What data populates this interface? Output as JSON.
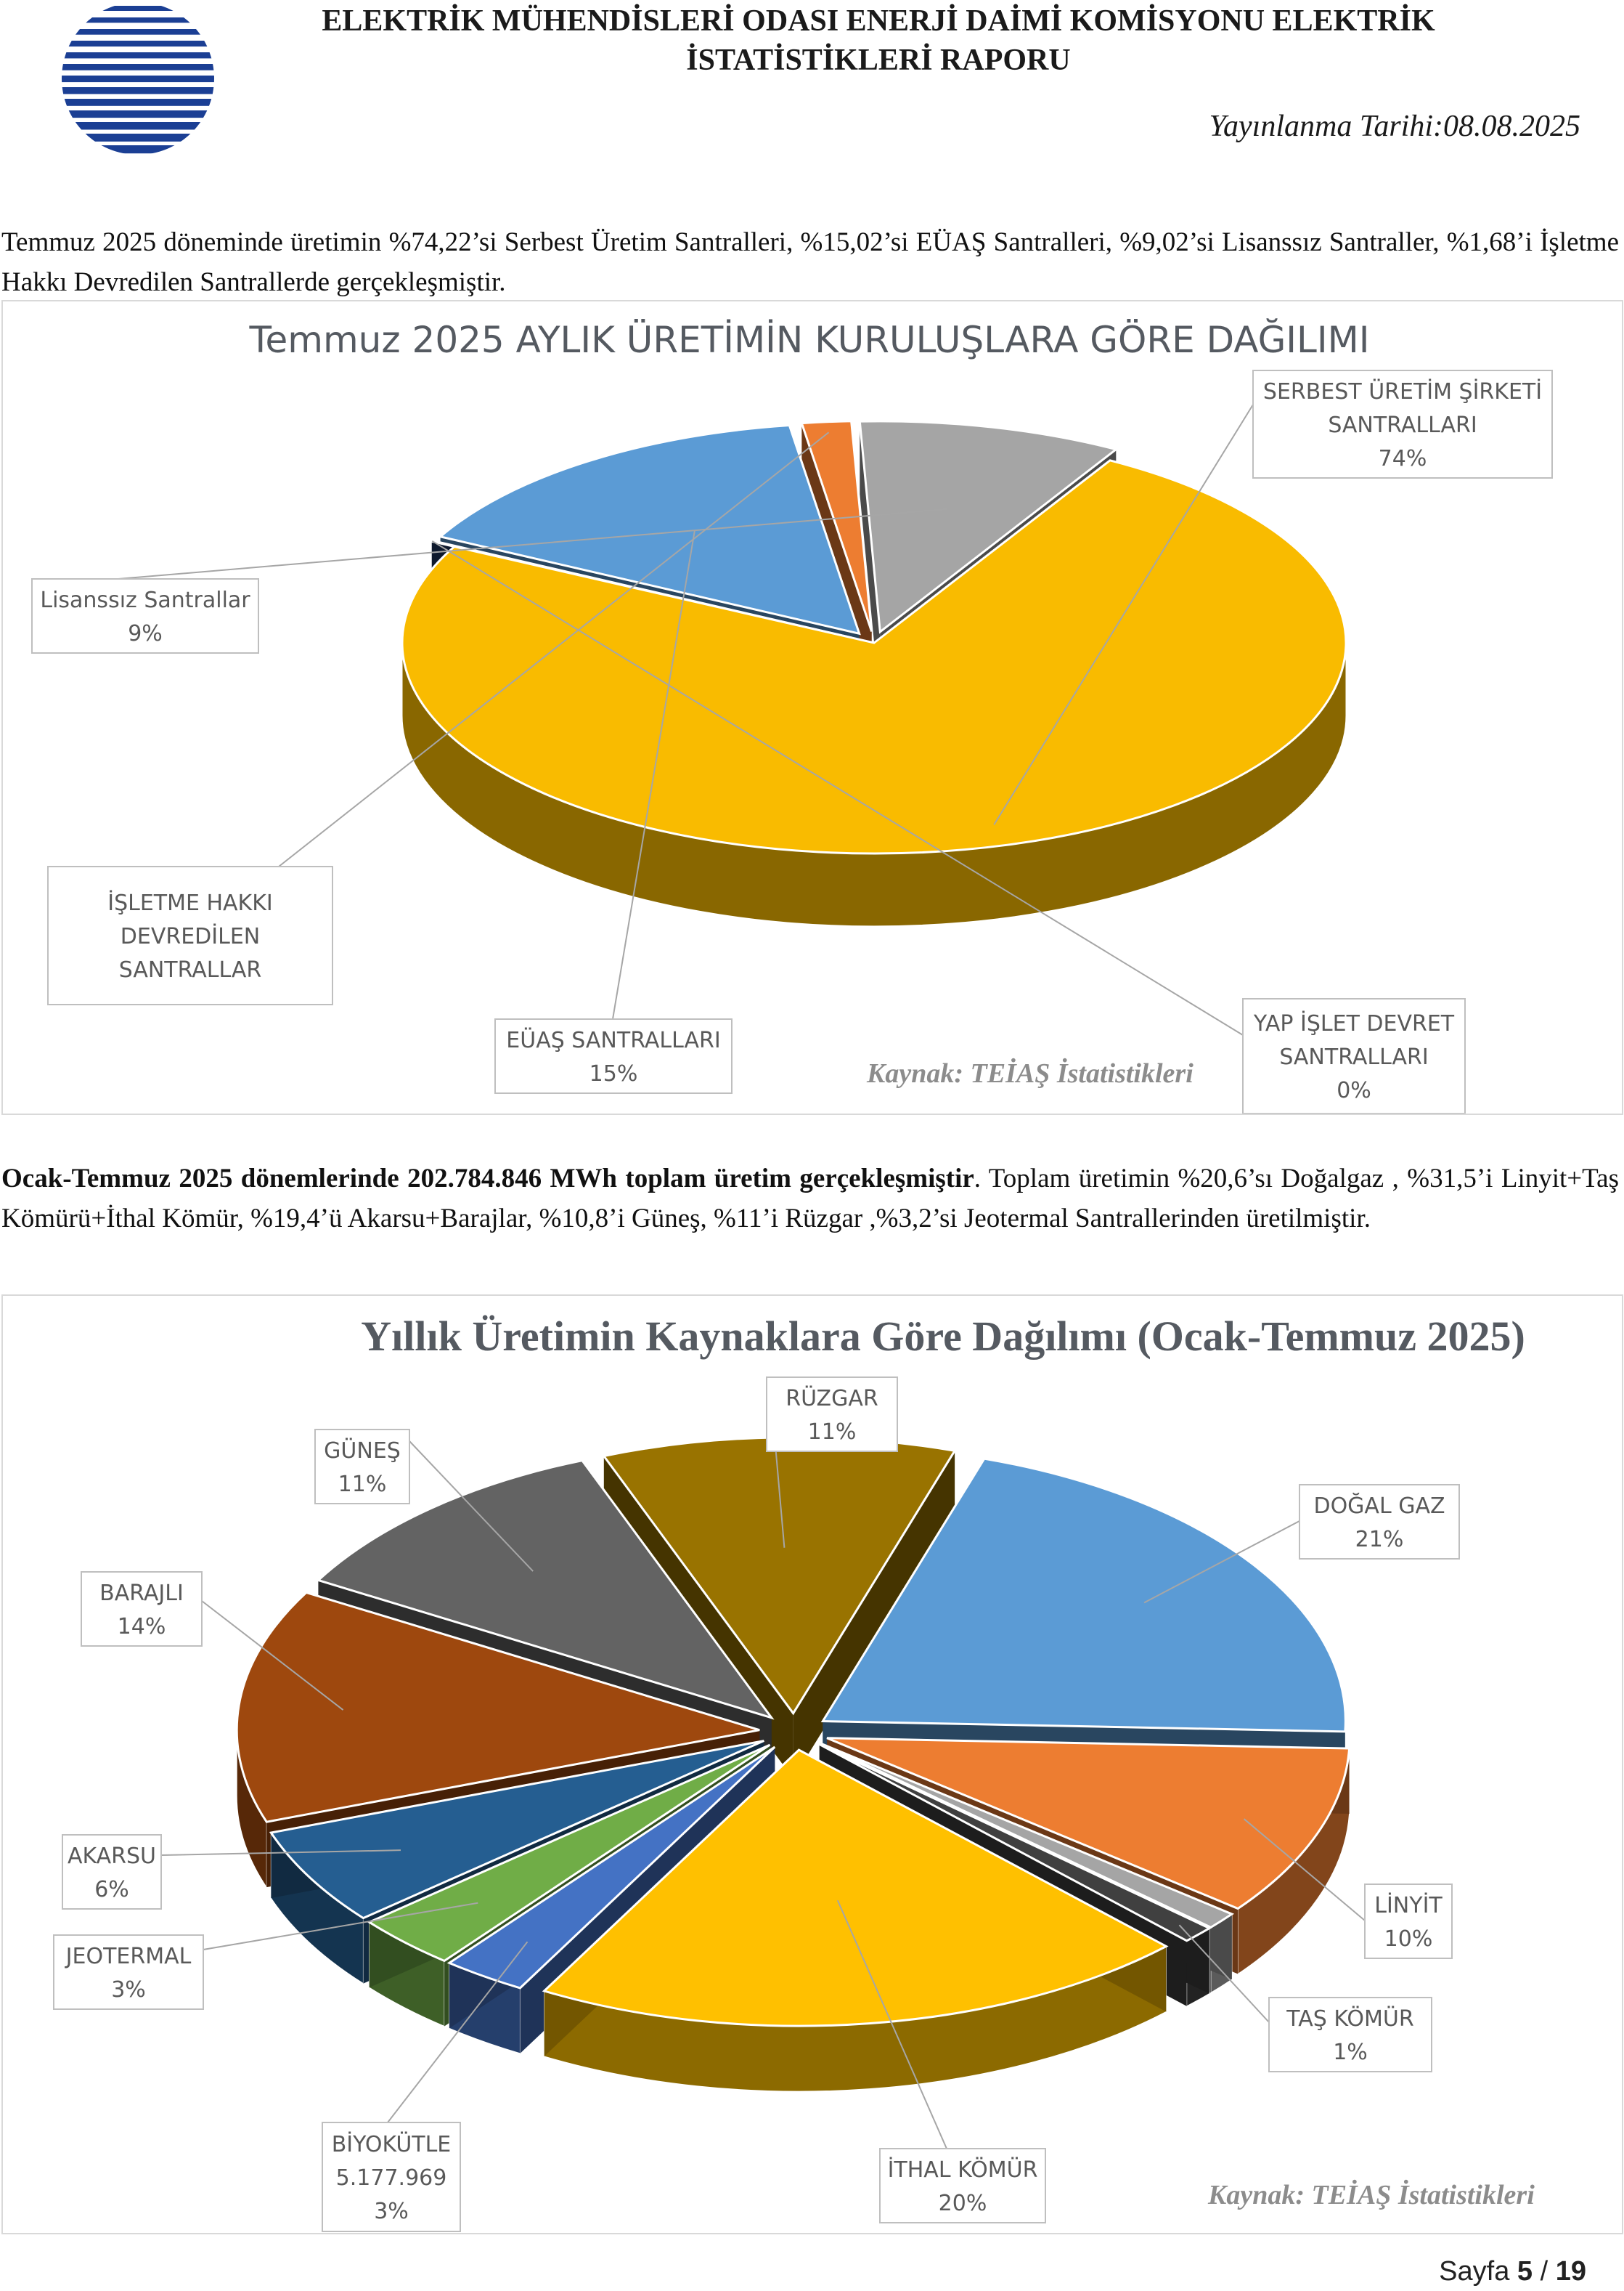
{
  "header": {
    "title_line1": "ELEKTRİK MÜHENDİSLERİ ODASI ENERJİ DAİMİ KOMİSYONU ELEKTRİK",
    "title_line2": "İSTATİSTİKLERİ RAPORU",
    "publication_date": "Yayınlanma Tarihi:08.08.2025"
  },
  "paragraph1": "Temmuz 2025 döneminde üretimin %74,22’si Serbest Üretim Santralleri, %15,02’si EÜAŞ Santralleri, %9,02’si Lisanssız Santraller, %1,68’i İşletme Hakkı Devredilen Santrallerde gerçekleşmiştir.",
  "paragraph2": {
    "bold_part": "Ocak-Temmuz 2025 dönemlerinde 202.784.846 MWh toplam üretim gerçekleşmiştir",
    "rest": ". Toplam üretimin %20,6’sı Doğalgaz , %31,5’i Linyit+Taş Kömürü+İthal Kömür, %19,4’ü Akarsu+Barajlar, %10,8’i Güneş, %11’i Rüzgar ,%3,2’si Jeotermal Santrallerinden üretilmiştir."
  },
  "chart_data": [
    {
      "type": "pie",
      "title": "Temmuz 2025 AYLIK ÜRETİMİN KURULUŞLARA GÖRE DAĞILIMI",
      "source": "Kaynak: TEİAŞ İstatistikleri",
      "slices": [
        {
          "label": [
            "SERBEST ÜRETİM ŞİRKETİ",
            "SANTRALLARI"
          ],
          "display": "74%",
          "value": 74.22,
          "color": "#f9bb00"
        },
        {
          "label": [
            "YAP İŞLET DEVRET",
            "SANTRALLARI"
          ],
          "display": "0%",
          "value": 0.06,
          "color": "#1f3864"
        },
        {
          "label": [
            "EÜAŞ SANTRALLARI"
          ],
          "display": "15%",
          "value": 15.02,
          "color": "#5b9bd5"
        },
        {
          "label": [
            "İŞLETME HAKKI",
            "DEVREDİLEN",
            "SANTRALLAR"
          ],
          "display": "",
          "value": 1.68,
          "color": "#ed7d31"
        },
        {
          "label": [
            "Lisanssız Santrallar"
          ],
          "display": "9%",
          "value": 9.02,
          "color": "#a5a5a5"
        }
      ]
    },
    {
      "type": "pie",
      "title": "Yıllık Üretimin Kaynaklara Göre Dağılımı (Ocak-Temmuz 2025)",
      "source": "Kaynak: TEİAŞ İstatistikleri",
      "slices": [
        {
          "label": [
            "DOĞAL GAZ"
          ],
          "display": "21%",
          "value": 20.6,
          "color": "#5b9bd5"
        },
        {
          "label": [
            "LİNYİT"
          ],
          "display": "10%",
          "value": 10.0,
          "color": "#ed7d31"
        },
        {
          "label": [],
          "display": "",
          "value": 1.0,
          "color": "#a5a5a5"
        },
        {
          "label": [
            "TAŞ KÖMÜR"
          ],
          "display": "1%",
          "value": 1.0,
          "color": "#404040"
        },
        {
          "label": [
            "İTHAL KÖMÜR"
          ],
          "display": "20%",
          "value": 20.5,
          "color": "#ffc000"
        },
        {
          "label": [
            "BİYOKÜTLE",
            "5.177.969"
          ],
          "display": "3%",
          "value": 2.6,
          "color": "#4472c4"
        },
        {
          "label": [
            "JEOTERMAL"
          ],
          "display": "3%",
          "value": 3.2,
          "color": "#70ad47"
        },
        {
          "label": [
            "AKARSU"
          ],
          "display": "6%",
          "value": 5.7,
          "color": "#255e91"
        },
        {
          "label": [
            "BARAJLI"
          ],
          "display": "14%",
          "value": 13.7,
          "color": "#9e480e"
        },
        {
          "label": [
            "GÜNEŞ"
          ],
          "display": "11%",
          "value": 10.8,
          "color": "#636363"
        },
        {
          "label": [
            "RÜZGAR"
          ],
          "display": "11%",
          "value": 10.9,
          "color": "#997300"
        }
      ]
    }
  ],
  "footer": {
    "page_prefix": "Sayfa",
    "page_current": "5",
    "page_sep": "/",
    "page_total": "19"
  }
}
